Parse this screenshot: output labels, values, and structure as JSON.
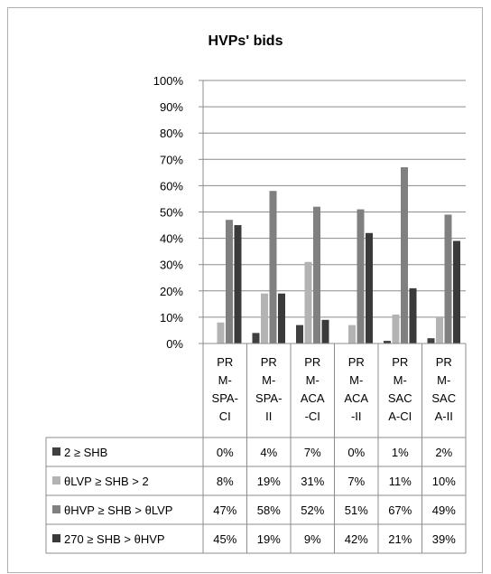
{
  "chart_data": {
    "type": "bar",
    "title": "HVPs' bids",
    "xlabel": "",
    "ylabel": "",
    "ylim": [
      0,
      100
    ],
    "yticks": [
      "0%",
      "10%",
      "20%",
      "30%",
      "40%",
      "50%",
      "60%",
      "70%",
      "80%",
      "90%",
      "100%"
    ],
    "grid": true,
    "legend": "data-table",
    "categories": [
      "PRM-SPA-CI",
      "PRM-SPA-II",
      "PRM-ACA-CI",
      "PRM-ACA-II",
      "PRM-SACA-CI",
      "PRM-SACA-II"
    ],
    "category_label_lines": [
      [
        "PR",
        "M-",
        "SPA-",
        "CI"
      ],
      [
        "PR",
        "M-",
        "SPA-",
        "II"
      ],
      [
        "PR",
        "M-",
        "ACA",
        "-CI"
      ],
      [
        "PR",
        "M-",
        "ACA",
        "-II"
      ],
      [
        "PR",
        "M-",
        "SAC",
        "A-CI"
      ],
      [
        "PR",
        "M-",
        "SAC",
        "A-II"
      ]
    ],
    "series": [
      {
        "name": "2 ≥ SHB",
        "color": "#404040",
        "values": [
          0,
          4,
          7,
          0,
          1,
          2
        ],
        "labels": [
          "0%",
          "4%",
          "7%",
          "0%",
          "1%",
          "2%"
        ]
      },
      {
        "name": "θLVP ≥ SHB > 2",
        "color": "#b3b3b3",
        "values": [
          8,
          19,
          31,
          7,
          11,
          10
        ],
        "labels": [
          "8%",
          "19%",
          "31%",
          "7%",
          "11%",
          "10%"
        ]
      },
      {
        "name": "θHVP ≥ SHB > θLVP",
        "color": "#808080",
        "values": [
          47,
          58,
          52,
          51,
          67,
          49
        ],
        "labels": [
          "47%",
          "58%",
          "52%",
          "51%",
          "67%",
          "49%"
        ]
      },
      {
        "name": "270 ≥ SHB > θHVP",
        "color": "#3a3a3a",
        "values": [
          45,
          19,
          9,
          42,
          21,
          39
        ],
        "labels": [
          "45%",
          "19%",
          "9%",
          "42%",
          "21%",
          "39%"
        ]
      }
    ]
  }
}
